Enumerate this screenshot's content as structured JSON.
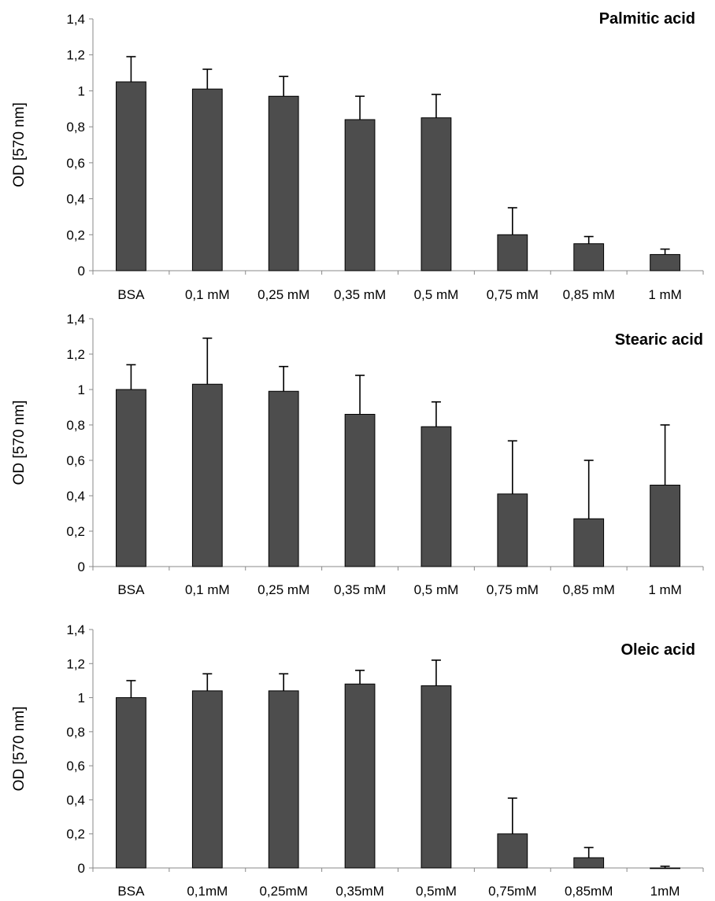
{
  "chart_data": [
    {
      "type": "bar",
      "title": "Palmitic acid",
      "ylabel": "OD [570 nm]",
      "ylim": [
        0,
        1.4
      ],
      "ytick_labels": [
        "0",
        "0,2",
        "0,4",
        "0,6",
        "0,8",
        "1",
        "1,2",
        "1,4"
      ],
      "categories": [
        "BSA",
        "0,1 mM",
        "0,25 mM",
        "0,35 mM",
        "0,5 mM",
        "0,75 mM",
        "0,85 mM",
        "1 mM"
      ],
      "values": [
        1.05,
        1.01,
        0.97,
        0.84,
        0.85,
        0.2,
        0.15,
        0.09
      ],
      "error_upper": [
        0.14,
        0.11,
        0.11,
        0.13,
        0.13,
        0.15,
        0.04,
        0.03
      ],
      "grid": false,
      "legend": "none"
    },
    {
      "type": "bar",
      "title": "Stearic acid",
      "ylabel": "OD [570 nm]",
      "ylim": [
        0,
        1.4
      ],
      "ytick_labels": [
        "0",
        "0,2",
        "0,4",
        "0,6",
        "0,8",
        "1",
        "1,2",
        "1,4"
      ],
      "categories": [
        "BSA",
        "0,1 mM",
        "0,25 mM",
        "0,35 mM",
        "0,5 mM",
        "0,75 mM",
        "0,85 mM",
        "1 mM"
      ],
      "values": [
        1.0,
        1.03,
        0.99,
        0.86,
        0.79,
        0.41,
        0.27,
        0.46
      ],
      "error_upper": [
        0.14,
        0.26,
        0.14,
        0.22,
        0.14,
        0.3,
        0.33,
        0.34
      ],
      "grid": false,
      "legend": "none"
    },
    {
      "type": "bar",
      "title": "Oleic acid",
      "ylabel": "OD [570 nm]",
      "ylim": [
        0,
        1.4
      ],
      "ytick_labels": [
        "0",
        "0,2",
        "0,4",
        "0,6",
        "0,8",
        "1",
        "1,2",
        "1,4"
      ],
      "categories": [
        "BSA",
        "0,1mM",
        "0,25mM",
        "0,35mM",
        "0,5mM",
        "0,75mM",
        "0,85mM",
        "1mM"
      ],
      "values": [
        1.0,
        1.04,
        1.04,
        1.08,
        1.07,
        0.2,
        0.06,
        0.0
      ],
      "error_upper": [
        0.1,
        0.1,
        0.1,
        0.08,
        0.15,
        0.21,
        0.06,
        0.01
      ],
      "grid": false,
      "legend": "none"
    }
  ]
}
